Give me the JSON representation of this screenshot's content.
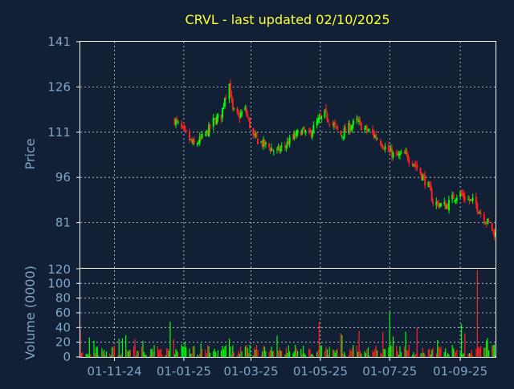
{
  "chart_data": [
    {
      "type": "candlestick",
      "title": "CRVL - last updated 02/10/2025",
      "ylabel": "Price",
      "ylim": [
        66,
        141
      ],
      "y_ticks": [
        "141",
        "126",
        "111",
        "96",
        "81"
      ],
      "x_ticks": [
        "01-11-24",
        "01-01-25",
        "01-03-25",
        "01-05-25",
        "01-07-25",
        "01-09-25"
      ],
      "x_range": [
        "2024-10-02",
        "2025-10-02"
      ],
      "grid": true,
      "colors": {
        "up": "#00ff00",
        "down": "#ff2020",
        "background": "#112034",
        "text": "#7fa5c8",
        "title": "#ffff33"
      },
      "price_path": [
        [
          "2024-12-24",
          115.0
        ],
        [
          "2024-12-27",
          113.5
        ],
        [
          "2025-01-01",
          111.0
        ],
        [
          "2025-01-06",
          108.5
        ],
        [
          "2025-01-10",
          106.5
        ],
        [
          "2025-01-14",
          108.0
        ],
        [
          "2025-01-20",
          110.0
        ],
        [
          "2025-01-27",
          114.5
        ],
        [
          "2025-02-03",
          116.5
        ],
        [
          "2025-02-06",
          123.0
        ],
        [
          "2025-02-10",
          127.0
        ],
        [
          "2025-02-13",
          118.0
        ],
        [
          "2025-02-18",
          116.0
        ],
        [
          "2025-02-24",
          118.5
        ],
        [
          "2025-03-03",
          109.5
        ],
        [
          "2025-03-10",
          107.5
        ],
        [
          "2025-03-17",
          106.0
        ],
        [
          "2025-03-24",
          104.5
        ],
        [
          "2025-03-31",
          106.5
        ],
        [
          "2025-04-07",
          109.0
        ],
        [
          "2025-04-14",
          111.5
        ],
        [
          "2025-04-21",
          110.0
        ],
        [
          "2025-04-28",
          114.0
        ],
        [
          "2025-05-05",
          117.0
        ],
        [
          "2025-05-12",
          113.5
        ],
        [
          "2025-05-19",
          110.0
        ],
        [
          "2025-05-26",
          112.5
        ],
        [
          "2025-06-02",
          114.5
        ],
        [
          "2025-06-09",
          112.0
        ],
        [
          "2025-06-16",
          110.5
        ],
        [
          "2025-06-23",
          108.0
        ],
        [
          "2025-06-30",
          104.5
        ],
        [
          "2025-07-07",
          103.0
        ],
        [
          "2025-07-14",
          103.5
        ],
        [
          "2025-07-21",
          101.5
        ],
        [
          "2025-07-28",
          97.5
        ],
        [
          "2025-08-04",
          93.0
        ],
        [
          "2025-08-08",
          88.0
        ],
        [
          "2025-08-14",
          87.0
        ],
        [
          "2025-08-20",
          86.5
        ],
        [
          "2025-08-26",
          89.5
        ],
        [
          "2025-09-01",
          90.5
        ],
        [
          "2025-09-08",
          88.5
        ],
        [
          "2025-09-14",
          87.5
        ],
        [
          "2025-09-20",
          83.5
        ],
        [
          "2025-09-26",
          80.5
        ],
        [
          "2025-10-02",
          77.0
        ]
      ],
      "wick_extra": 1.5
    },
    {
      "type": "bar",
      "ylabel": "Volume (0000)",
      "ylim": [
        0,
        120
      ],
      "y_ticks": [
        "120",
        "100",
        "80",
        "60",
        "40",
        "20",
        "0"
      ],
      "y_tick_values": [
        120,
        100,
        80,
        60,
        40,
        20,
        0
      ],
      "typical_volume": 8,
      "spikes": [
        [
          "2024-10-02",
          36,
          "down"
        ],
        [
          "2024-10-14",
          22,
          "up"
        ],
        [
          "2024-11-05",
          25,
          "up"
        ],
        [
          "2024-11-26",
          22,
          "up"
        ],
        [
          "2024-12-20",
          48,
          "up"
        ],
        [
          "2025-01-02",
          21,
          "up"
        ],
        [
          "2025-02-10",
          25,
          "up"
        ],
        [
          "2025-03-24",
          29,
          "up"
        ],
        [
          "2025-04-30",
          48,
          "down"
        ],
        [
          "2025-07-01",
          61,
          "up"
        ],
        [
          "2025-07-25",
          40,
          "down"
        ],
        [
          "2025-08-12",
          23,
          "up"
        ],
        [
          "2025-09-02",
          45,
          "up"
        ],
        [
          "2025-09-16",
          118,
          "down"
        ],
        [
          "2025-09-24",
          22,
          "up"
        ]
      ]
    }
  ]
}
